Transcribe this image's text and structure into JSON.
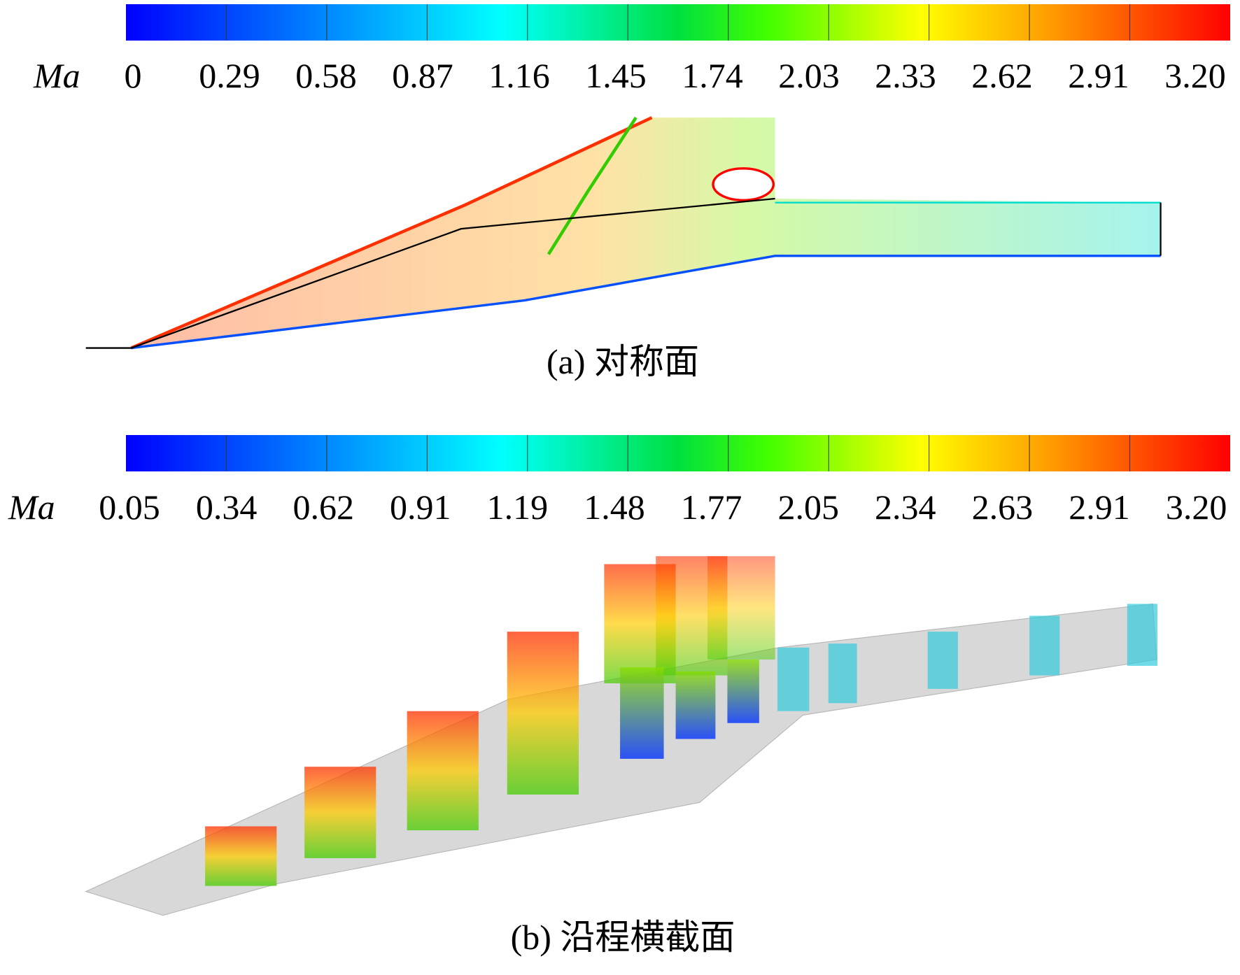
{
  "panels": [
    {
      "colorbar": {
        "label": "Ma",
        "ticks": [
          "0",
          "0.29",
          "0.58",
          "0.87",
          "1.16",
          "1.45",
          "1.74",
          "2.03",
          "2.33",
          "2.62",
          "2.91",
          "3.20"
        ]
      },
      "caption": "(a) 对称面"
    },
    {
      "colorbar": {
        "label": "Ma",
        "ticks": [
          "0.05",
          "0.34",
          "0.62",
          "0.91",
          "1.19",
          "1.48",
          "1.77",
          "2.05",
          "2.34",
          "2.63",
          "2.91",
          "3.20"
        ]
      },
      "caption": "(b) 沿程横截面"
    }
  ]
}
